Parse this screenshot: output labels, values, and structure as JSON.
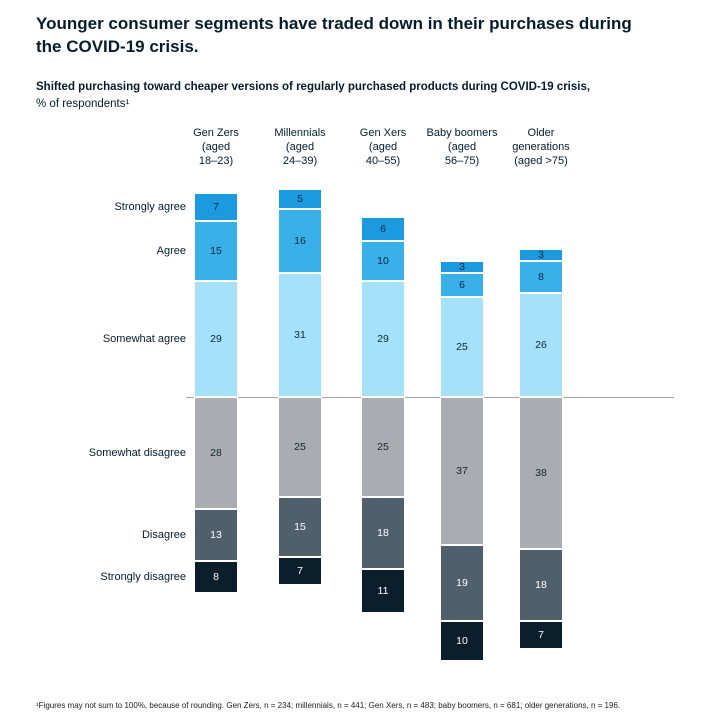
{
  "header": {
    "title": "Younger consumer segments have traded down in their purchases during the COVID-19 crisis.",
    "subtitle_bold": "Shifted purchasing toward cheaper versions of regularly purchased products during COVID-19 crisis,",
    "subtitle_unit": "% of respondents¹"
  },
  "footnote": "¹Figures may not sum to 100%, because of rounding. Gen Zers, n = 234; millennials, n = 441; Gen Xers, n = 483; baby boomers, n = 681; older generations, n = 196.",
  "chart_data": {
    "type": "bar",
    "variant": "diverging-stacked-column",
    "title": "Shifted purchasing toward cheaper versions of regularly purchased products during COVID-19 crisis",
    "unit": "% of respondents",
    "baseline_between": [
      "Somewhat agree",
      "Somewhat disagree"
    ],
    "categories": [
      {
        "label": "Gen Zers (aged 18–23)",
        "lines": [
          "Gen Zers",
          "(aged",
          "18–23)"
        ]
      },
      {
        "label": "Millennials (aged 24–39)",
        "lines": [
          "Millennials",
          "(aged",
          "24–39)"
        ]
      },
      {
        "label": "Gen Xers (aged 40–55)",
        "lines": [
          "Gen Xers",
          "(aged",
          "40–55)"
        ]
      },
      {
        "label": "Baby boomers (aged 56–75)",
        "lines": [
          "Baby boomers",
          "(aged",
          "56–75)"
        ]
      },
      {
        "label": "Older generations (aged >75)",
        "lines": [
          "Older",
          "generations",
          "(aged >75)"
        ]
      }
    ],
    "series": [
      {
        "name": "Strongly agree",
        "side": "above",
        "color": "#1b9ae0",
        "label_color": "#06283a",
        "values": [
          7,
          5,
          6,
          3,
          3
        ]
      },
      {
        "name": "Agree",
        "side": "above",
        "color": "#3ab0e8",
        "label_color": "#06283a",
        "values": [
          15,
          16,
          10,
          6,
          8
        ]
      },
      {
        "name": "Somewhat agree",
        "side": "above",
        "color": "#a5e1f9",
        "label_color": "#06283a",
        "values": [
          29,
          31,
          29,
          25,
          26
        ]
      },
      {
        "name": "Somewhat disagree",
        "side": "below",
        "color": "#a9adb2",
        "label_color": "#15242e",
        "values": [
          28,
          25,
          25,
          37,
          38
        ]
      },
      {
        "name": "Disagree",
        "side": "below",
        "color": "#4f5f6c",
        "label_color": "#ffffff",
        "values": [
          13,
          15,
          18,
          19,
          18
        ]
      },
      {
        "name": "Strongly disagree",
        "side": "below",
        "color": "#0b1e2b",
        "label_color": "#ffffff",
        "values": [
          8,
          7,
          11,
          10,
          7
        ]
      }
    ]
  }
}
